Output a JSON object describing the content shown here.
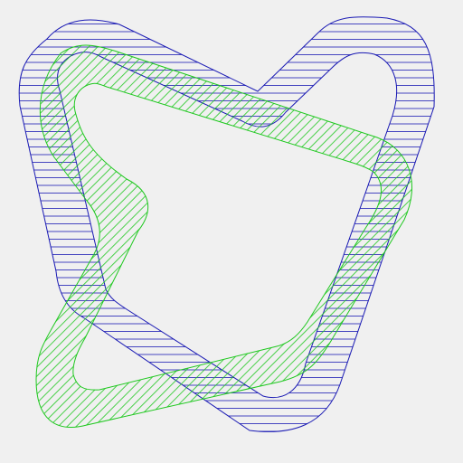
{
  "background": "#f0f0f0",
  "shapes": [
    {
      "name": "blue-horizontal-hatched-ring",
      "stroke": "#1a1ab4",
      "hatch": "horizontal"
    },
    {
      "name": "green-diagonal-hatched-ring",
      "stroke": "#1ec81e",
      "hatch": "diagonal"
    }
  ]
}
